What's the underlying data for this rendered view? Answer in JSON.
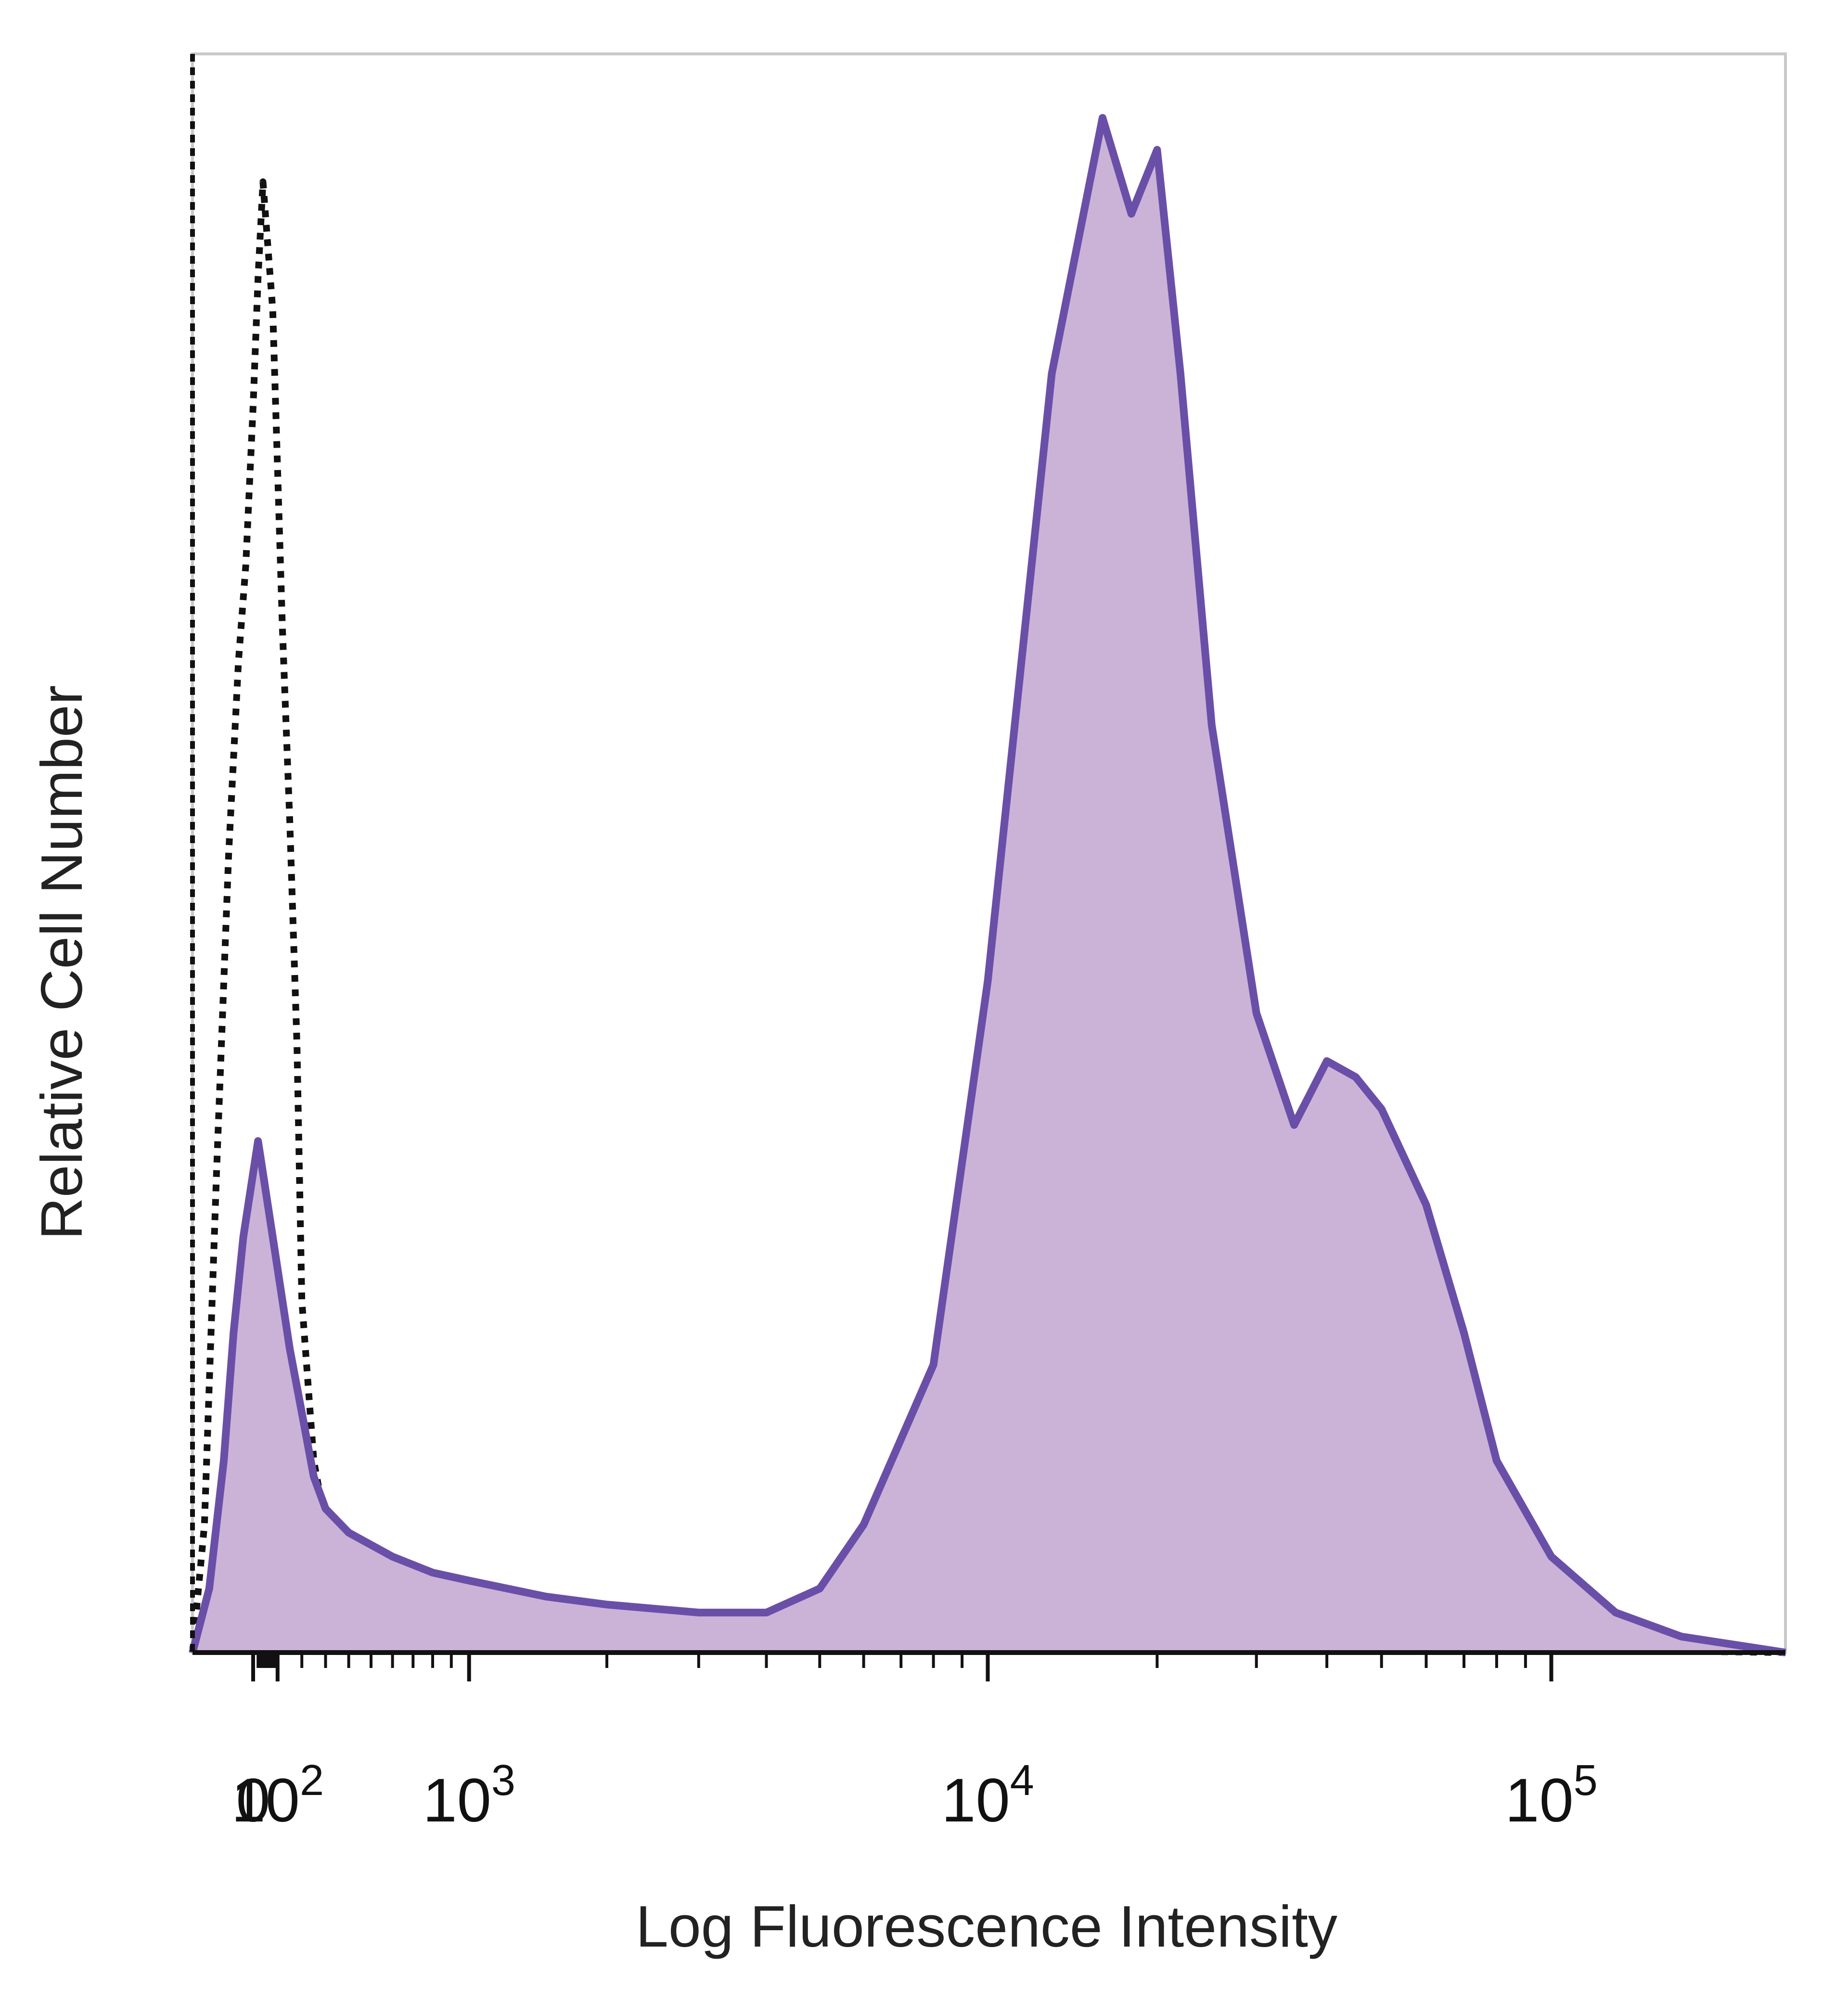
{
  "chart_data": {
    "type": "area",
    "title": "",
    "xlabel": "Log Fluorescence Intensity",
    "ylabel": "Relative Cell Number",
    "x_scale": "biexponential",
    "x_ticks": [
      {
        "value": 0,
        "base": "0",
        "exp": ""
      },
      {
        "value": 100,
        "base": "10",
        "exp": "2"
      },
      {
        "value": 1000,
        "base": "10",
        "exp": "3"
      },
      {
        "value": 10000,
        "base": "10",
        "exp": "4"
      },
      {
        "value": 100000,
        "base": "10",
        "exp": "5"
      }
    ],
    "xlim": [
      -250,
      260000
    ],
    "ylim": [
      0,
      100
    ],
    "grid": false,
    "legend": "none",
    "series": [
      {
        "style": "dotted-line",
        "color": "#111111",
        "x": [
          -250,
          -200,
          -150,
          -100,
          -60,
          -30,
          0,
          20,
          40,
          60,
          80,
          100,
          120,
          150,
          180,
          200,
          250,
          300,
          400,
          500,
          700,
          1000,
          1500,
          2000,
          3000,
          5000,
          10000,
          30000,
          100000,
          260000
        ],
        "y": [
          0,
          8,
          30,
          50,
          62,
          68,
          78,
          86,
          92,
          88,
          84,
          74,
          64,
          52,
          38,
          22,
          12,
          8,
          5,
          3.5,
          2.5,
          1.8,
          1.2,
          0.9,
          0.7,
          0.5,
          0.4,
          0.3,
          0.2,
          0
        ]
      },
      {
        "style": "filled-area",
        "color": "#6a4fa8",
        "fill": "#cbb3d8",
        "x": [
          -250,
          -180,
          -120,
          -80,
          -40,
          0,
          20,
          40,
          60,
          80,
          100,
          150,
          200,
          250,
          300,
          400,
          600,
          800,
          1000,
          1500,
          2000,
          3000,
          4000,
          5000,
          6000,
          8000,
          10000,
          13000,
          16000,
          18000,
          20000,
          22000,
          25000,
          30000,
          35000,
          40000,
          45000,
          50000,
          60000,
          70000,
          80000,
          100000,
          130000,
          170000,
          260000
        ],
        "y": [
          0,
          4,
          12,
          20,
          26,
          30,
          32,
          30,
          28,
          26,
          24,
          19,
          15,
          11,
          9,
          7.5,
          6,
          5,
          4.5,
          3.5,
          3,
          2.5,
          2.5,
          4,
          8,
          18,
          42,
          80,
          96,
          90,
          94,
          80,
          58,
          40,
          33,
          37,
          36,
          34,
          28,
          20,
          12,
          6,
          2.5,
          1,
          0
        ]
      }
    ]
  }
}
